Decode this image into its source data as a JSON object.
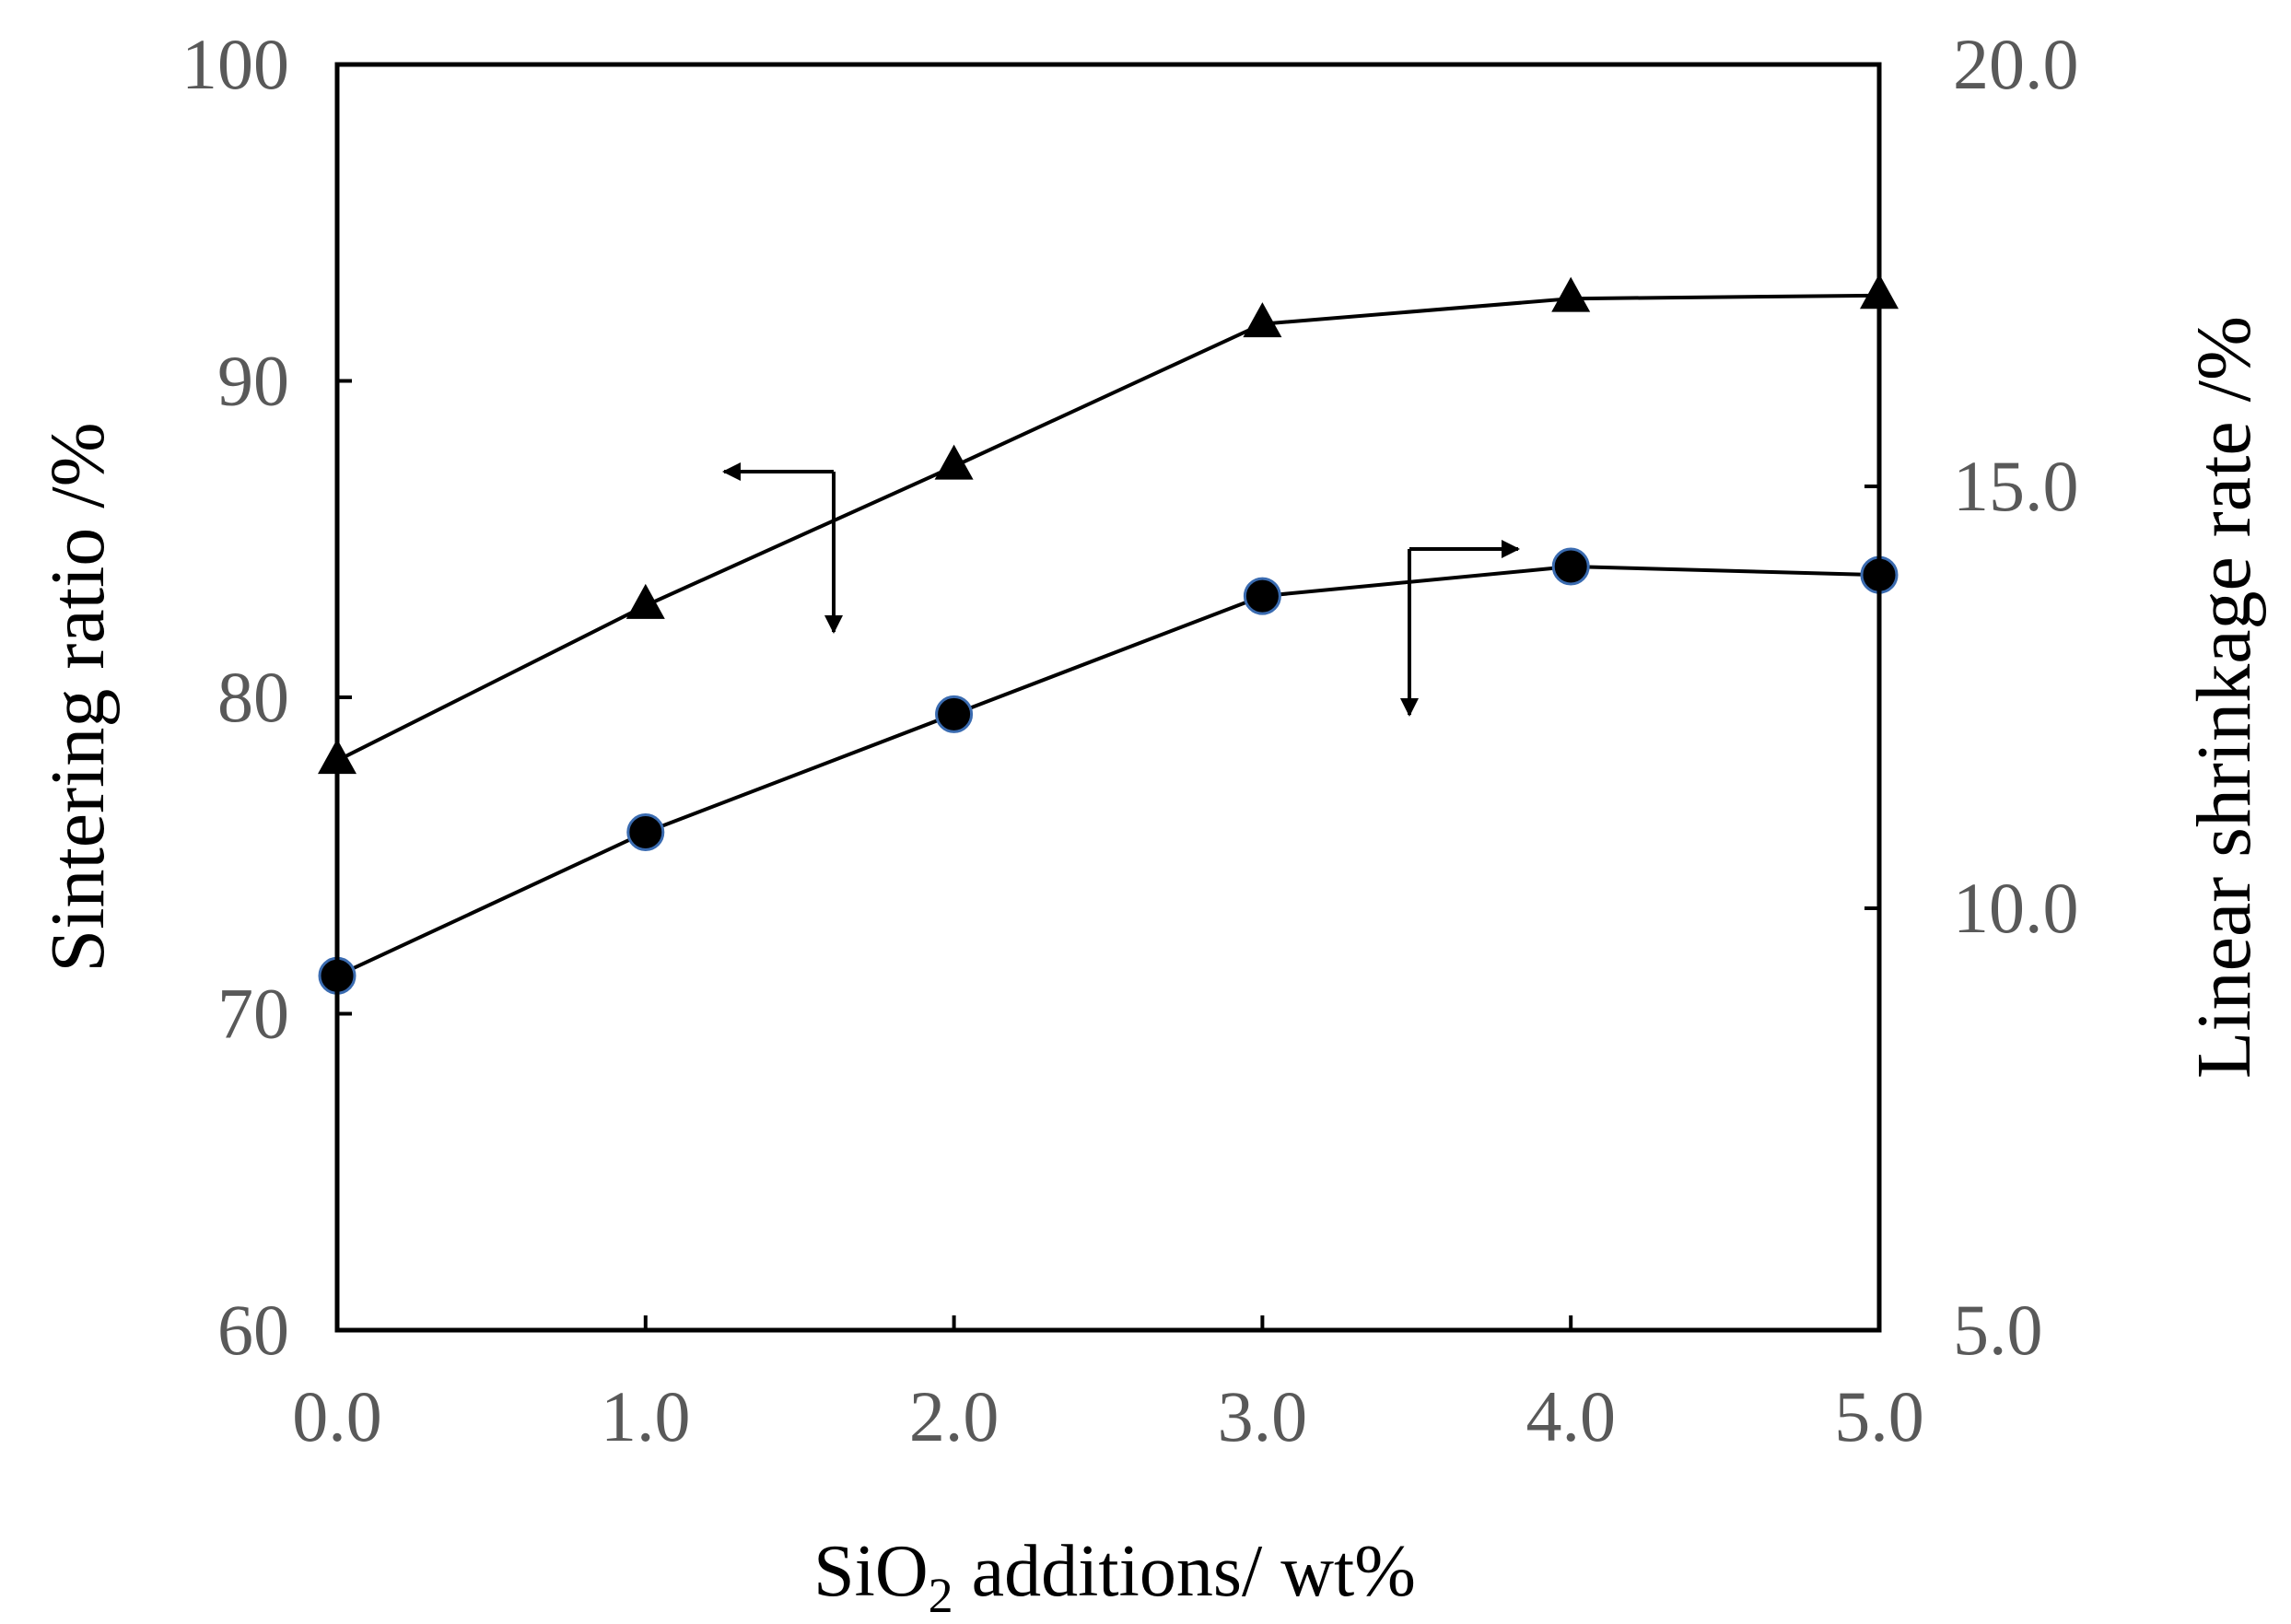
{
  "chart_data": {
    "type": "line",
    "x": [
      0.0,
      1.0,
      2.0,
      3.0,
      4.0,
      5.0
    ],
    "x_tick_labels": [
      "0.0",
      "1.0",
      "2.0",
      "3.0",
      "4.0",
      "5.0"
    ],
    "xlim": [
      0,
      5
    ],
    "xlabel": {
      "main": "SiO",
      "subscript": "2",
      "rest": " additions/ wt%"
    },
    "y_left": {
      "label": "Sintering ratio /%",
      "lim": [
        60,
        100
      ],
      "ticks": [
        60,
        70,
        80,
        90,
        100
      ],
      "tick_labels": [
        "60",
        "70",
        "80",
        "90",
        "100"
      ]
    },
    "y_right": {
      "label": "Linear shrinkage rate /%",
      "lim": [
        5.0,
        20.0
      ],
      "ticks": [
        5.0,
        10.0,
        15.0,
        20.0
      ],
      "tick_labels": [
        "5.0",
        "10.0",
        "15.0",
        "20.0"
      ]
    },
    "series": [
      {
        "name": "Sintering ratio",
        "axis": "left",
        "marker": "triangle",
        "values": [
          78.0,
          82.9,
          87.3,
          91.8,
          92.6,
          92.7
        ]
      },
      {
        "name": "Linear shrinkage rate",
        "axis": "right",
        "marker": "circle",
        "values": [
          9.2,
          10.9,
          12.3,
          13.7,
          14.05,
          13.95
        ]
      }
    ],
    "annotations": [
      {
        "type": "arrow",
        "points_to": "left axis",
        "series": "Sintering ratio"
      },
      {
        "type": "arrow",
        "points_to": "right axis",
        "series": "Linear shrinkage rate"
      }
    ],
    "grid": false,
    "legend": "none"
  }
}
